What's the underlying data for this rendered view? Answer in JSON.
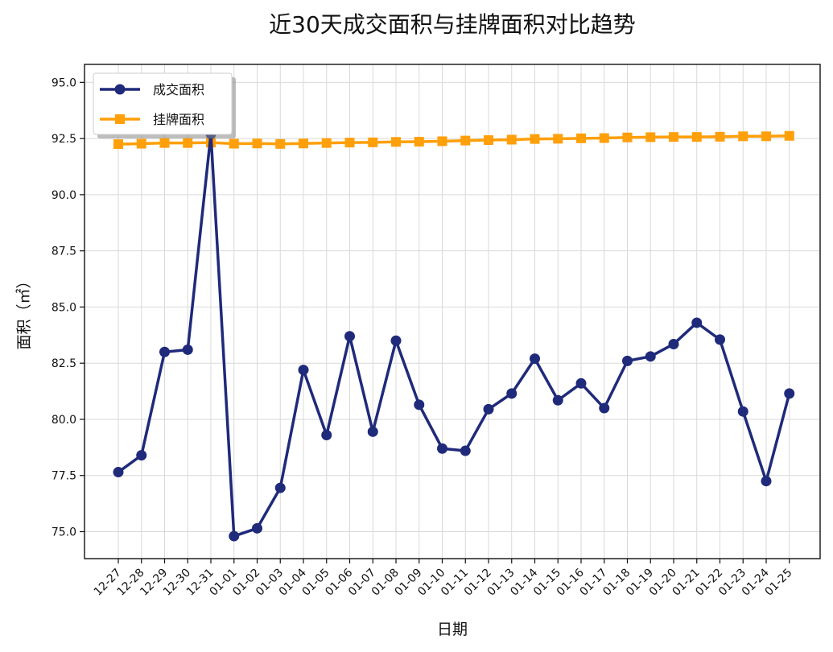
{
  "chart_data": {
    "type": "line",
    "title": "近30天成交面积与挂牌面积对比趋势",
    "xlabel": "日期",
    "ylabel": "面积（㎡）",
    "ylim": [
      73.8,
      95.8
    ],
    "yticks": [
      "75.0",
      "77.5",
      "80.0",
      "82.5",
      "85.0",
      "87.5",
      "90.0",
      "92.5",
      "95.0"
    ],
    "grid": true,
    "legend_position": "top-left",
    "categories": [
      "12-27",
      "12-28",
      "12-29",
      "12-30",
      "12-31",
      "01-01",
      "01-02",
      "01-03",
      "01-04",
      "01-05",
      "01-06",
      "01-07",
      "01-08",
      "01-09",
      "01-10",
      "01-11",
      "01-12",
      "01-13",
      "01-14",
      "01-15",
      "01-16",
      "01-17",
      "01-18",
      "01-19",
      "01-20",
      "01-21",
      "01-22",
      "01-23",
      "01-24",
      "01-25"
    ],
    "series": [
      {
        "name": "成交面积",
        "color": "#1f2a7a",
        "marker": "circle",
        "values": [
          77.65,
          78.4,
          83.0,
          83.1,
          92.7,
          74.8,
          75.15,
          76.95,
          82.2,
          79.3,
          83.7,
          79.45,
          83.5,
          80.65,
          78.7,
          78.6,
          80.45,
          81.15,
          82.7,
          80.85,
          81.6,
          80.5,
          82.6,
          82.8,
          83.35,
          84.3,
          83.55,
          80.35,
          77.25,
          81.15
        ]
      },
      {
        "name": "挂牌面积",
        "color": "#ff9f0a",
        "marker": "square",
        "values": [
          92.25,
          92.27,
          92.3,
          92.3,
          92.32,
          92.27,
          92.28,
          92.26,
          92.28,
          92.3,
          92.32,
          92.33,
          92.35,
          92.36,
          92.38,
          92.41,
          92.43,
          92.45,
          92.48,
          92.49,
          92.51,
          92.52,
          92.55,
          92.56,
          92.57,
          92.57,
          92.58,
          92.6,
          92.6,
          92.62
        ]
      }
    ]
  }
}
